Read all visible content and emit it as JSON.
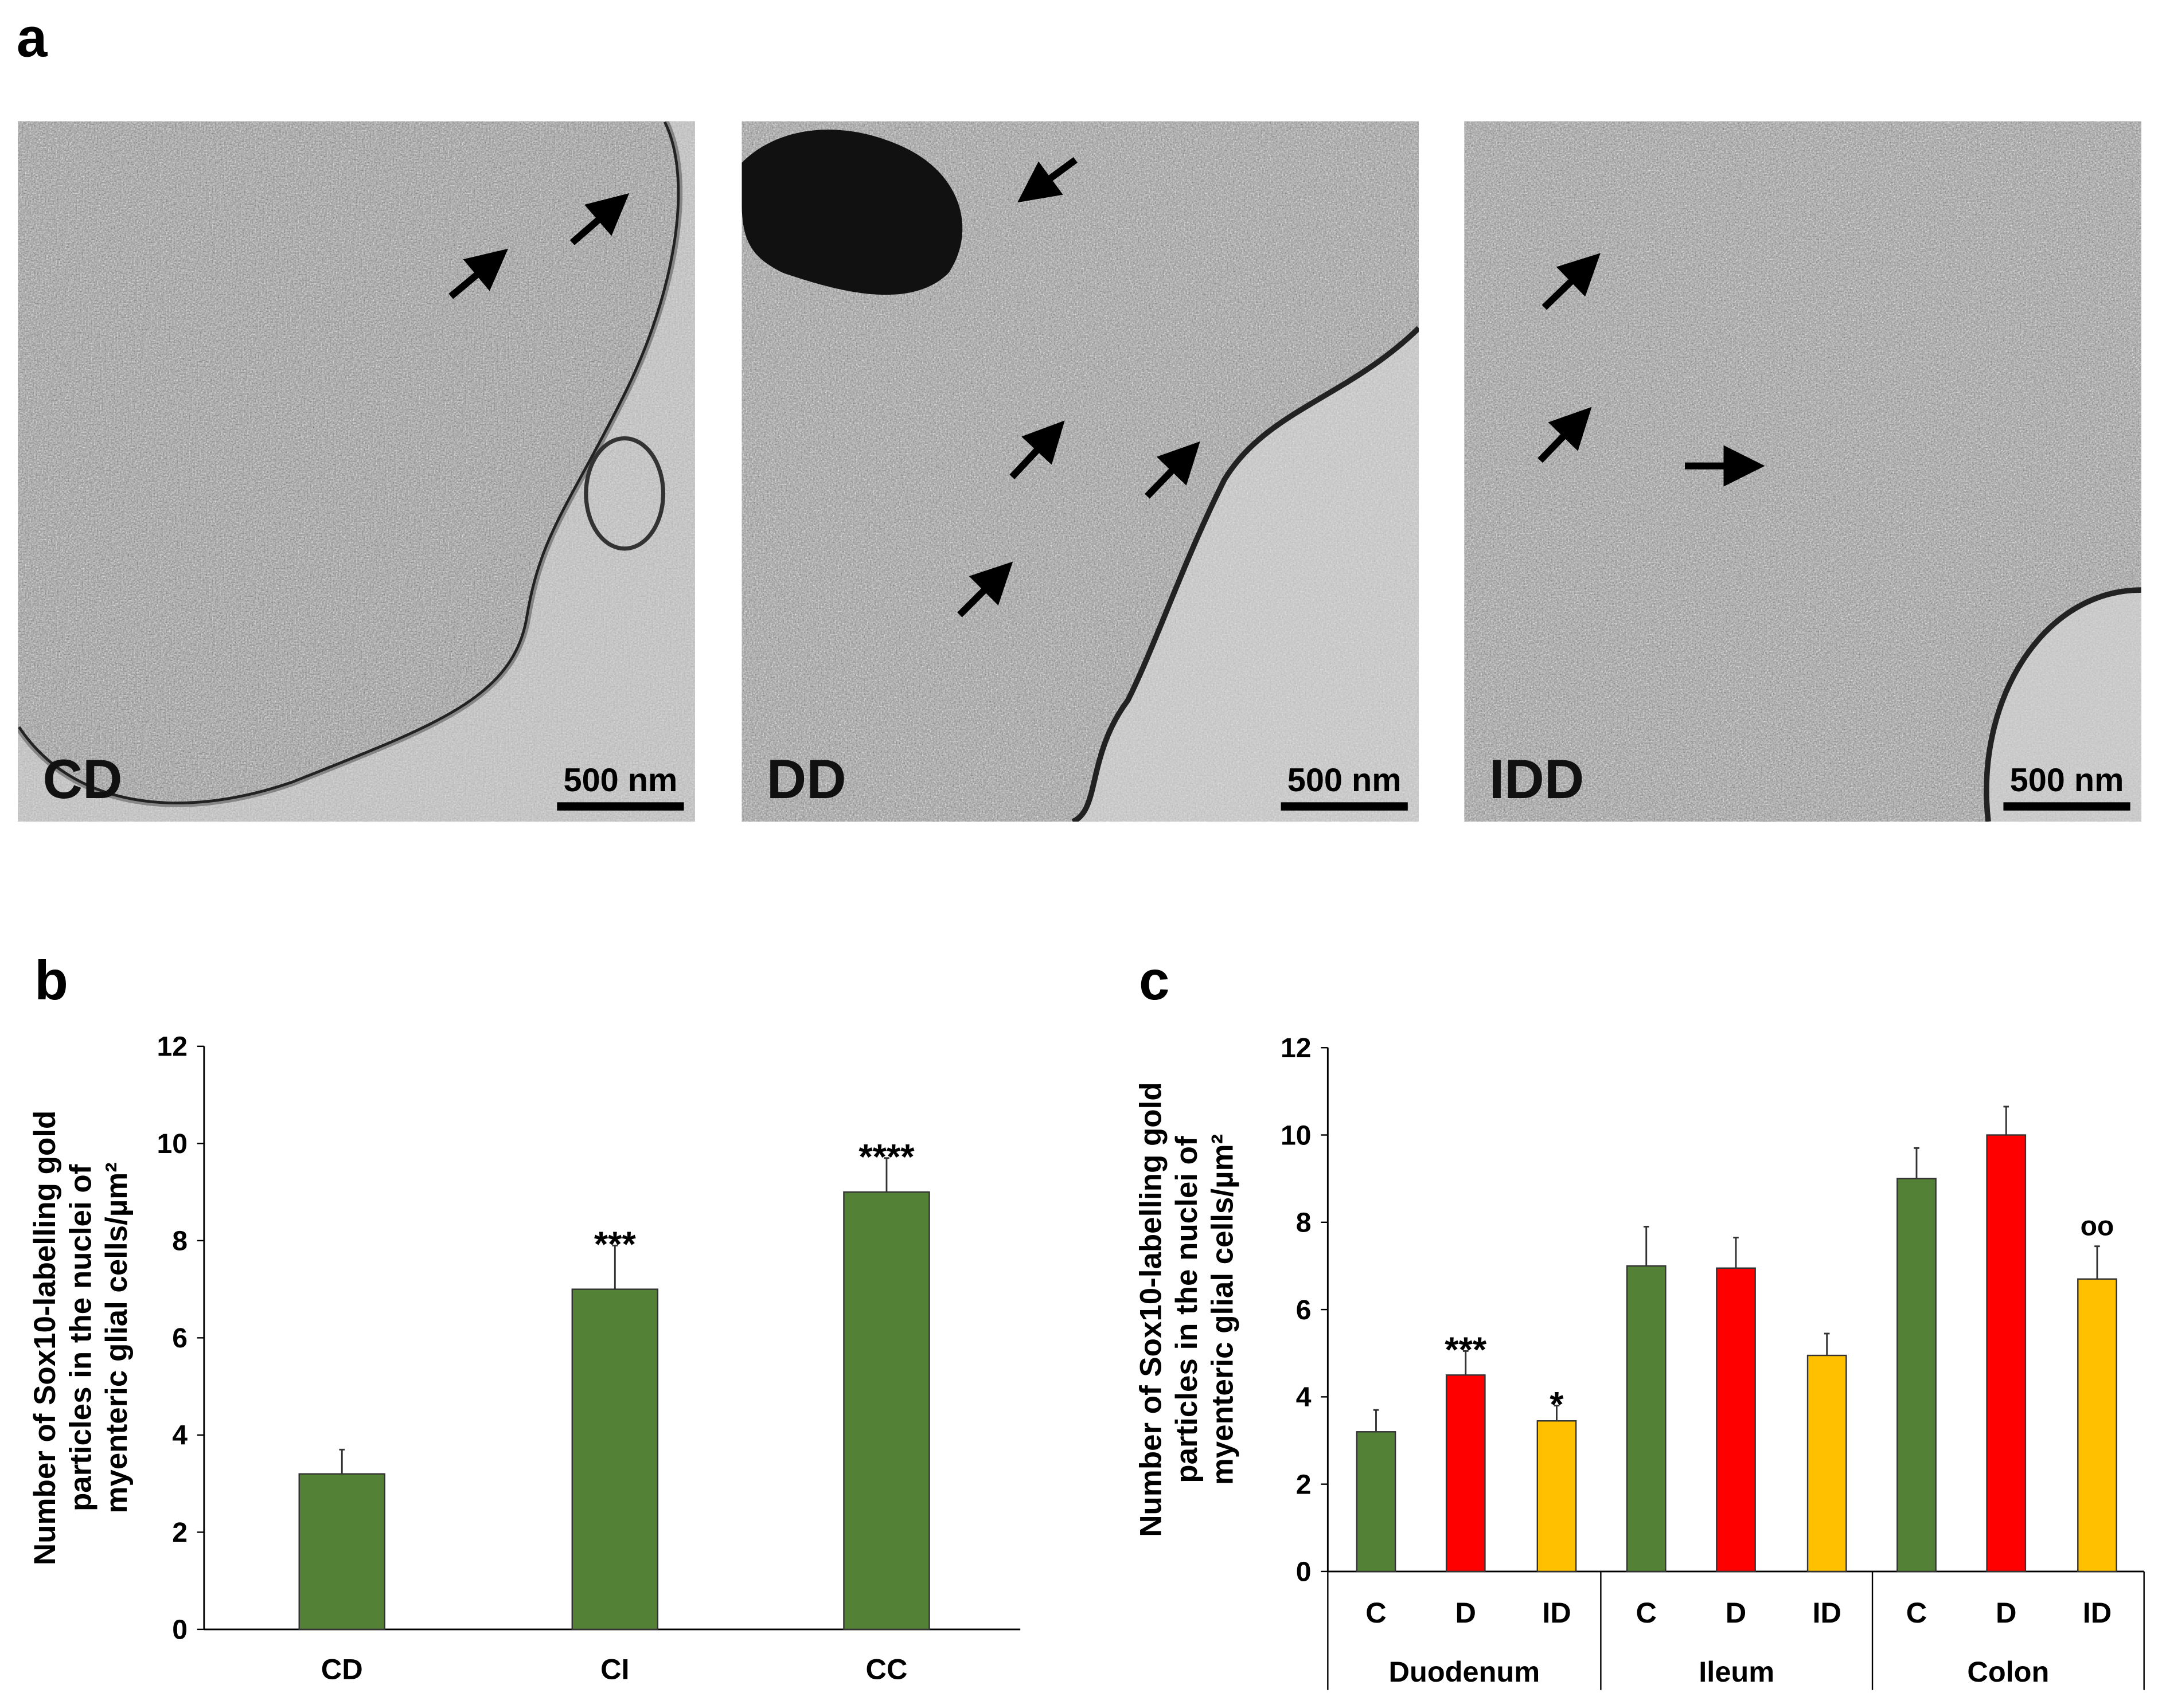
{
  "panels": {
    "a": {
      "label": "a",
      "images": [
        {
          "label": "CD",
          "scale_bar": "500 nm"
        },
        {
          "label": "DD",
          "scale_bar": "500 nm"
        },
        {
          "label": "IDD",
          "scale_bar": "500 nm"
        }
      ]
    },
    "b": {
      "label": "b"
    },
    "c": {
      "label": "c"
    }
  },
  "chart_data": [
    {
      "type": "bar",
      "panel": "b",
      "ylabel": [
        "Number of Sox10-labelling gold",
        "particles in the nuclei of",
        "myenteric glial cells/µm²"
      ],
      "ylim": [
        0,
        12
      ],
      "yticks": [
        "0",
        "2",
        "4",
        "6",
        "8",
        "10",
        "12"
      ],
      "categories": [
        "CD",
        "CI",
        "CC"
      ],
      "values": [
        3.2,
        7.0,
        9.0
      ],
      "error_upper": [
        3.7,
        7.9,
        9.7
      ],
      "annotations": [
        "",
        "***",
        "****"
      ],
      "colors": [
        "#538135",
        "#538135",
        "#538135"
      ],
      "grid": false
    },
    {
      "type": "bar",
      "panel": "c",
      "ylabel": [
        "Number of Sox10-labelling gold",
        "particles in the nuclei of",
        "myenteric glial cells/µm²"
      ],
      "ylim": [
        0,
        12
      ],
      "yticks": [
        "0",
        "2",
        "4",
        "6",
        "8",
        "10",
        "12"
      ],
      "groups": [
        "Duodenum",
        "Ileum",
        "Colon"
      ],
      "categories": [
        "C",
        "D",
        "ID",
        "C",
        "D",
        "ID",
        "C",
        "D",
        "ID"
      ],
      "values": [
        3.2,
        4.5,
        3.45,
        7.0,
        6.95,
        4.95,
        9.0,
        10.0,
        6.7
      ],
      "error_upper": [
        3.7,
        5.05,
        3.8,
        7.9,
        7.65,
        5.45,
        9.7,
        10.65,
        7.45
      ],
      "annotations": [
        "",
        "***",
        "*",
        "",
        "",
        "",
        "",
        "",
        "oo"
      ],
      "colors": [
        "#538135",
        "#ff0000",
        "#ffc000",
        "#538135",
        "#ff0000",
        "#ffc000",
        "#538135",
        "#ff0000",
        "#ffc000"
      ],
      "grid": false
    }
  ]
}
